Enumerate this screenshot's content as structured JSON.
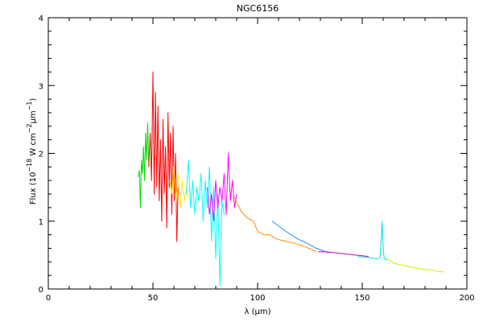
{
  "chart_data": {
    "type": "line",
    "title": "NGC6156",
    "xlabel": "λ (μm)",
    "ylabel_main": "Flux (10",
    "ylabel_exp1": "−18",
    "ylabel_mid": " W cm",
    "ylabel_exp2": "−2",
    "ylabel_um": "μm",
    "ylabel_exp3": "−1",
    "ylabel_close": ")",
    "xlim": [
      0,
      200
    ],
    "ylim": [
      0,
      4
    ],
    "xticks": [
      0,
      50,
      100,
      150,
      200
    ],
    "xtick_labels": [
      "0",
      "50",
      "100",
      "150",
      "200"
    ],
    "yticks": [
      0,
      1,
      2,
      3,
      4
    ],
    "ytick_labels": [
      "0",
      "1",
      "2",
      "3",
      "4"
    ],
    "grid": false,
    "series": [
      {
        "color": "#00e000",
        "x": [
          43.0,
          43.5,
          44.0,
          44.5,
          45.0,
          45.5,
          46.0,
          46.5,
          47.0,
          47.5,
          48.0
        ],
        "y": [
          1.65,
          1.75,
          1.2,
          1.9,
          1.7,
          2.1,
          1.6,
          2.3,
          1.9,
          2.45,
          1.8
        ]
      },
      {
        "color": "#ff0000",
        "x": [
          48.0,
          48.7,
          49.3,
          50.0,
          50.6,
          51.2,
          51.8,
          52.4,
          53.0,
          53.6,
          54.2,
          54.8,
          55.4,
          56.0,
          56.6,
          57.2,
          57.8,
          58.4,
          59.0,
          59.6,
          60.2,
          60.8,
          61.4,
          62.0
        ],
        "y": [
          1.8,
          2.3,
          1.6,
          3.2,
          1.4,
          2.9,
          1.5,
          2.7,
          1.3,
          2.2,
          1.0,
          2.5,
          1.4,
          2.1,
          0.9,
          2.6,
          1.5,
          2.3,
          1.1,
          2.4,
          1.3,
          2.0,
          0.7,
          1.5
        ]
      },
      {
        "color": "#ffee00",
        "x": [
          58.0,
          59.0,
          60.0,
          61.0,
          62.0,
          63.0,
          64.0,
          65.0,
          66.0,
          67.0
        ],
        "y": [
          1.6,
          1.4,
          1.8,
          1.3,
          1.7,
          1.2,
          1.6,
          1.3,
          1.5,
          1.35
        ]
      },
      {
        "color": "#00ffff",
        "x": [
          66.0,
          67.0,
          68.0,
          69.0,
          70.0,
          71.0,
          72.0,
          73.0,
          74.0,
          75.0,
          76.0,
          77.0,
          78.0,
          79.0,
          80.0,
          81.0,
          82.0,
          83.0,
          84.0
        ],
        "y": [
          1.4,
          1.9,
          1.2,
          1.6,
          1.1,
          1.5,
          1.3,
          1.7,
          1.0,
          1.6,
          1.2,
          1.8,
          0.7,
          1.5,
          0.45,
          1.4,
          0.05,
          1.3,
          1.1
        ]
      },
      {
        "color": "#ff00ff",
        "x": [
          76.0,
          77.0,
          78.0,
          79.0,
          80.0,
          81.0,
          82.0,
          83.0,
          84.0,
          85.0,
          86.0,
          87.0,
          88.0,
          89.0,
          90.0
        ],
        "y": [
          1.5,
          1.1,
          1.4,
          1.0,
          1.6,
          1.2,
          1.5,
          1.3,
          1.7,
          1.1,
          2.0,
          1.3,
          1.6,
          1.2,
          1.4
        ]
      },
      {
        "color": "#ff8c00",
        "x": [
          89.0,
          92.0,
          95.0,
          98.0,
          100.0,
          103.0,
          106.0,
          108.0,
          111.0,
          114.0,
          117.0,
          120.0,
          123.0,
          126.0,
          128.0
        ],
        "y": [
          1.35,
          1.15,
          1.05,
          1.0,
          0.85,
          0.8,
          0.8,
          0.75,
          0.72,
          0.7,
          0.68,
          0.65,
          0.62,
          0.58,
          0.55
        ]
      },
      {
        "color": "#1e90ff",
        "x": [
          107.0,
          110.0,
          113.0,
          116.0,
          119.0,
          122.0,
          125.0,
          128.0,
          131.0,
          134.0
        ],
        "y": [
          1.0,
          0.93,
          0.86,
          0.8,
          0.74,
          0.7,
          0.65,
          0.6,
          0.57,
          0.53
        ]
      },
      {
        "color": "#c000c0",
        "x": [
          129.0,
          132.0,
          135.0,
          138.0,
          141.0,
          144.0,
          147.0,
          150.0,
          153.0
        ],
        "y": [
          0.55,
          0.55,
          0.54,
          0.53,
          0.52,
          0.51,
          0.5,
          0.49,
          0.48
        ]
      },
      {
        "color": "#00e0e0",
        "x": [
          148.0,
          151.0,
          154.0,
          157.0,
          158.5,
          159.0,
          159.5,
          160.0,
          160.5,
          161.0,
          162.0
        ],
        "y": [
          0.48,
          0.47,
          0.46,
          0.44,
          0.46,
          0.7,
          1.0,
          0.6,
          0.45,
          0.44,
          0.43
        ]
      },
      {
        "color": "#c8f000",
        "x": [
          162.0,
          165.0,
          168.0,
          171.0,
          174.0,
          177.0,
          180.0,
          183.0,
          186.0,
          189.0
        ],
        "y": [
          0.45,
          0.38,
          0.36,
          0.34,
          0.32,
          0.3,
          0.29,
          0.28,
          0.26,
          0.25
        ]
      }
    ]
  }
}
